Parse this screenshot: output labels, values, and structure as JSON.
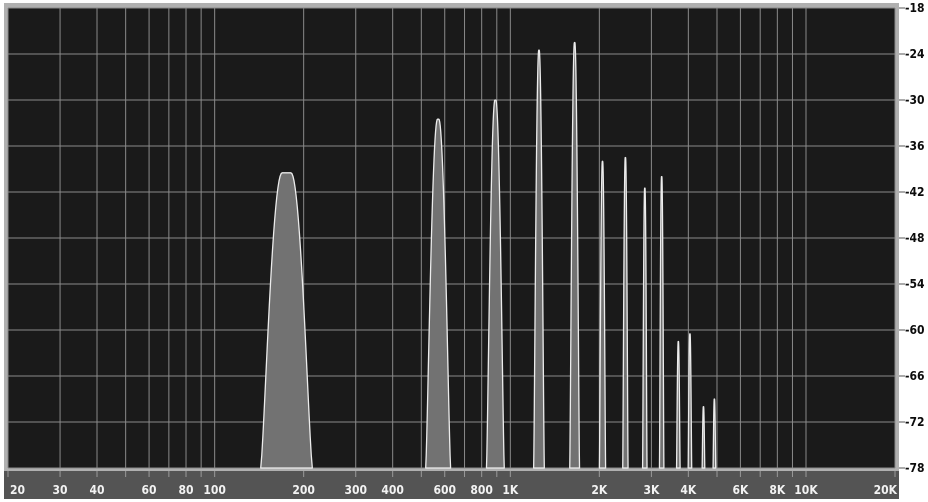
{
  "chart_data": {
    "type": "area",
    "x_scale": "log",
    "xlim": [
      20,
      20000
    ],
    "ylim": [
      -78,
      -18
    ],
    "grid": true,
    "x_ticks": [
      20,
      30,
      40,
      60,
      80,
      100,
      200,
      300,
      400,
      600,
      800,
      1000,
      2000,
      3000,
      4000,
      6000,
      8000,
      10000,
      20000
    ],
    "x_tick_labels": [
      "20",
      "30",
      "40",
      "60",
      "80",
      "100",
      "200",
      "300",
      "400",
      "600",
      "800",
      "1K",
      "2K",
      "3K",
      "4K",
      "6K",
      "8K",
      "10K",
      "20K"
    ],
    "y_ticks": [
      -18,
      -24,
      -30,
      -36,
      -42,
      -48,
      -54,
      -60,
      -66,
      -72,
      -78
    ],
    "y_tick_labels": [
      "-18",
      "-24",
      "-30",
      "-36",
      "-42",
      "-48",
      "-54",
      "-60",
      "-66",
      "-72",
      "-78"
    ],
    "x_minor_grid": [
      50,
      70,
      90,
      500,
      700,
      900,
      5000,
      7000,
      9000
    ],
    "peaks": [
      {
        "freq": 175,
        "level": -39.5,
        "width_oct": 0.58,
        "flat_oct": 0.1
      },
      {
        "freq": 570,
        "level": -32.5,
        "width_oct": 0.28,
        "flat_oct": 0.015
      },
      {
        "freq": 890,
        "level": -30.0,
        "width_oct": 0.2,
        "flat_oct": 0.01
      },
      {
        "freq": 1250,
        "level": -23.5,
        "width_oct": 0.12,
        "flat_oct": 0.005
      },
      {
        "freq": 1650,
        "level": -22.5,
        "width_oct": 0.11,
        "flat_oct": 0.005
      },
      {
        "freq": 2050,
        "level": -38.0,
        "width_oct": 0.07,
        "flat_oct": 0.004
      },
      {
        "freq": 2450,
        "level": -37.5,
        "width_oct": 0.06,
        "flat_oct": 0.004
      },
      {
        "freq": 2850,
        "level": -41.5,
        "width_oct": 0.05,
        "flat_oct": 0.004
      },
      {
        "freq": 3250,
        "level": -40.0,
        "width_oct": 0.05,
        "flat_oct": 0.004
      },
      {
        "freq": 3700,
        "level": -61.5,
        "width_oct": 0.04,
        "flat_oct": 0.003
      },
      {
        "freq": 4050,
        "level": -60.5,
        "width_oct": 0.04,
        "flat_oct": 0.003
      },
      {
        "freq": 4500,
        "level": -70.0,
        "width_oct": 0.03,
        "flat_oct": 0.003
      },
      {
        "freq": 4900,
        "level": -69.0,
        "width_oct": 0.03,
        "flat_oct": 0.003
      }
    ],
    "colors": {
      "plot_bg": "#1a1a1a",
      "grid": "#8a8a8a",
      "fill": "#727272",
      "outline": "#ececec",
      "frame": "#b0b0b0",
      "x_axis_bg": "#545454",
      "x_label": "#f2f2f2",
      "y_label": "#0c0c0c"
    }
  }
}
